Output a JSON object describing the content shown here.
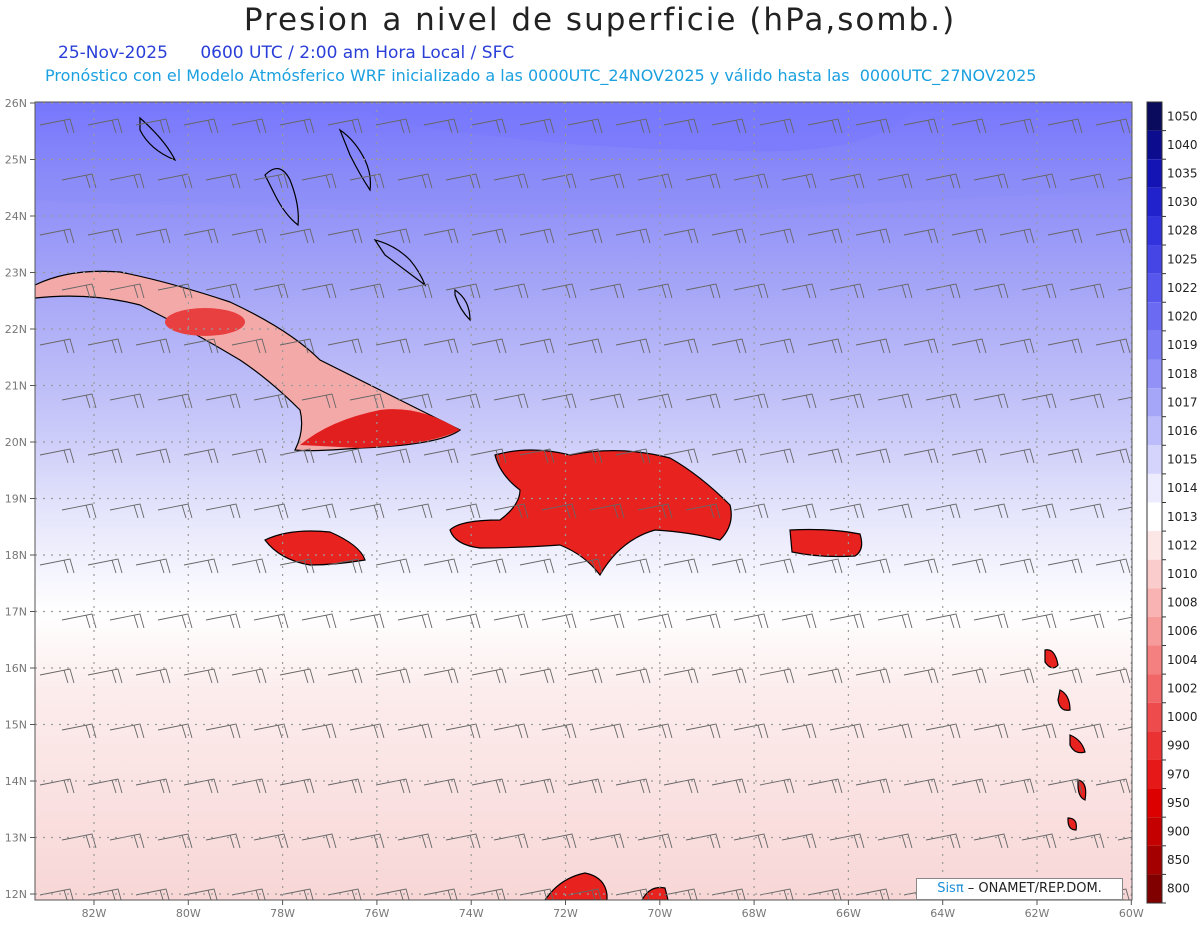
{
  "header": {
    "title": "Presion a nivel de superficie (hPa,somb.)",
    "date": "25-Nov-2025",
    "valid_time": "0600 UTC / 2:00 am Hora Local / SFC",
    "model_info": "Pronóstico con el Modelo Atmósferico WRF inicializado a las 0000UTC_24NOV2025 y válido hasta las  0000UTC_27NOV2025"
  },
  "map": {
    "lat_labels": [
      "26N",
      "25N",
      "24N",
      "23N",
      "22N",
      "21N",
      "20N",
      "19N",
      "18N",
      "17N",
      "16N",
      "15N",
      "14N",
      "13N",
      "12N"
    ],
    "lon_labels": [
      "82W",
      "80W",
      "78W",
      "76W",
      "74W",
      "72W",
      "70W",
      "68W",
      "66W",
      "64W",
      "62W",
      "60W"
    ],
    "colors": {
      "high": "#6b6bff",
      "low": "#e31a1c",
      "land": "#e8231f",
      "grid": "#9a9a9a"
    }
  },
  "colorbar": {
    "levels": [
      "1050",
      "1040",
      "1035",
      "1030",
      "1028",
      "1025",
      "1022",
      "1020",
      "1019",
      "1018",
      "1017",
      "1016",
      "1015",
      "1014",
      "1013",
      "1012",
      "1010",
      "1008",
      "1006",
      "1004",
      "1002",
      "1000",
      "990",
      "970",
      "950",
      "900",
      "850",
      "800"
    ],
    "colors": [
      "#0b0b5e",
      "#0c0c8e",
      "#1414b4",
      "#2222cc",
      "#3333dd",
      "#4545e6",
      "#5757ee",
      "#6a6af2",
      "#7d7df5",
      "#9191f7",
      "#a6a6f9",
      "#bcbcfb",
      "#d4d4fc",
      "#ececfe",
      "#ffffff",
      "#fde6e6",
      "#fbcccc",
      "#f9b3b3",
      "#f69a9a",
      "#f48080",
      "#f16666",
      "#ee4c4c",
      "#ea3232",
      "#e61818",
      "#dd0000",
      "#c40000",
      "#a40000",
      "#800000"
    ]
  },
  "credit": {
    "brand": "Sisπ",
    "org": " – ONAMET/REP.DOM."
  }
}
